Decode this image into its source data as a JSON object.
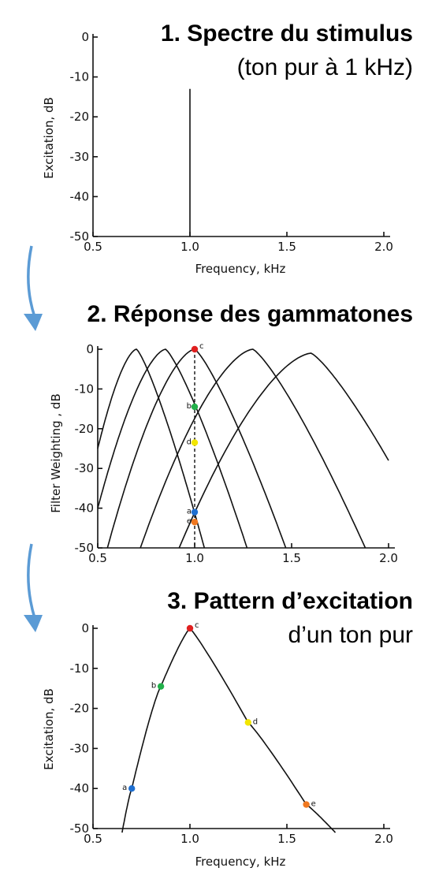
{
  "chart_data": [
    {
      "type": "line",
      "title": "1. Spectre du stimulus",
      "subtitle": "(ton pur à 1 kHz)",
      "xlabel": "Frequency, kHz",
      "ylabel": "Excitation, dB",
      "xlim": [
        0.5,
        2.0
      ],
      "ylim": [
        -50,
        0
      ],
      "xticks": [
        "0.5",
        "1.0",
        "1.5",
        "2.0"
      ],
      "yticks": [
        "0",
        "-10",
        "-20",
        "-30",
        "-40",
        "-50"
      ],
      "series": [
        {
          "x": [
            1.0,
            1.0
          ],
          "y": [
            -50,
            -13
          ]
        }
      ]
    },
    {
      "type": "line",
      "title": "2. Réponse des gammatones",
      "xlabel": "",
      "ylabel": "Filter Weighting , dB",
      "xlim": [
        0.5,
        2.0
      ],
      "ylim": [
        -50,
        0
      ],
      "xticks": [
        "0.5",
        "1.0",
        "1.5",
        "2.0"
      ],
      "yticks": [
        "0",
        "-10",
        "-20",
        "-30",
        "-40",
        "-50"
      ],
      "reference_x": 1.0,
      "series": [
        {
          "peak": 0.7,
          "x": [
            0.5,
            0.7,
            1.05
          ],
          "y": [
            -25,
            0,
            -50
          ]
        },
        {
          "peak": 0.85,
          "x": [
            0.5,
            0.85,
            1.27
          ],
          "y": [
            -40,
            0,
            -50
          ]
        },
        {
          "peak": 1.0,
          "x": [
            0.55,
            1.0,
            1.47
          ],
          "y": [
            -50,
            0,
            -50
          ]
        },
        {
          "peak": 1.3,
          "x": [
            0.72,
            1.3,
            1.88
          ],
          "y": [
            -50,
            0,
            -50
          ]
        },
        {
          "peak": 1.6,
          "x": [
            0.92,
            1.6,
            2.0
          ],
          "y": [
            -50,
            -1,
            -28
          ]
        }
      ],
      "points": [
        {
          "label": "c",
          "x": 1.0,
          "y": 0,
          "color": "#e02020"
        },
        {
          "label": "b",
          "x": 1.0,
          "y": -14.5,
          "color": "#22b04a"
        },
        {
          "label": "d",
          "x": 1.0,
          "y": -23.5,
          "color": "#f2e600"
        },
        {
          "label": "a",
          "x": 1.0,
          "y": -41,
          "color": "#1f6fd0"
        },
        {
          "label": "e",
          "x": 1.0,
          "y": -43.5,
          "color": "#f07820"
        }
      ]
    },
    {
      "type": "line",
      "title": "3. Pattern d’excitation",
      "subtitle": "d’un ton pur",
      "xlabel": "Frequency, kHz",
      "ylabel": "Excitation, dB",
      "xlim": [
        0.5,
        2.0
      ],
      "ylim": [
        -50,
        0
      ],
      "xticks": [
        "0.5",
        "1.0",
        "1.5",
        "2.0"
      ],
      "yticks": [
        "0",
        "-10",
        "-20",
        "-30",
        "-40",
        "-50"
      ],
      "series": [
        {
          "x": [
            0.65,
            0.7,
            0.85,
            1.0,
            1.3,
            1.6,
            1.75
          ],
          "y": [
            -51,
            -40,
            -14.5,
            0,
            -23.5,
            -44,
            -51
          ]
        }
      ],
      "points": [
        {
          "label": "a",
          "x": 0.7,
          "y": -40,
          "color": "#1f6fd0"
        },
        {
          "label": "b",
          "x": 0.85,
          "y": -14.5,
          "color": "#22b04a"
        },
        {
          "label": "c",
          "x": 1.0,
          "y": 0,
          "color": "#e02020"
        },
        {
          "label": "d",
          "x": 1.3,
          "y": -23.5,
          "color": "#f2e600"
        },
        {
          "label": "e",
          "x": 1.6,
          "y": -44,
          "color": "#f07820"
        }
      ]
    }
  ],
  "colors": {
    "arrow": "#5b9bd5"
  }
}
